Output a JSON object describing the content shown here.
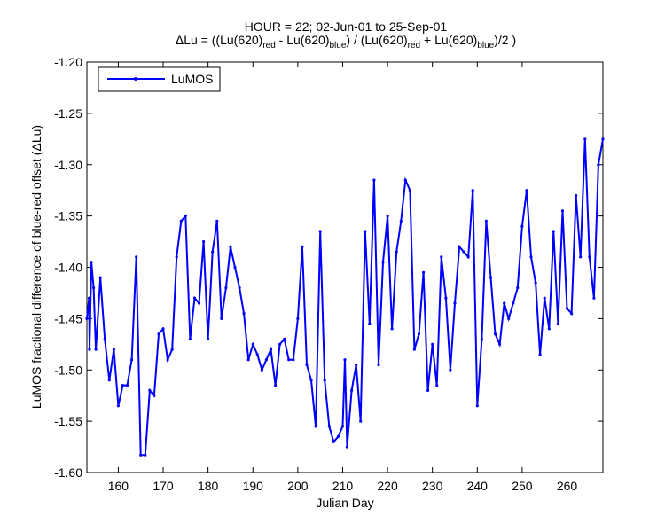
{
  "title": {
    "line1": "HOUR = 22; 02-Jun-01 to 25-Sep-01",
    "formula": {
      "prefix": "ΔLu = ((Lu(620)",
      "red": "red",
      "mid1": " - Lu(620)",
      "blue": "blue",
      "mid2": ") / (Lu(620)",
      "mid3": " + Lu(620)",
      "suffix": ")/2  )"
    }
  },
  "chart_data": {
    "type": "line",
    "xlabel": "Julian Day",
    "ylabel": "LuMOS fractional difference of blue-red offset (ΔLu)",
    "xlim": [
      153,
      268
    ],
    "ylim": [
      -1.6,
      -1.2
    ],
    "xticks": [
      160,
      170,
      180,
      190,
      200,
      210,
      220,
      230,
      240,
      250,
      260
    ],
    "yticks": [
      -1.6,
      -1.55,
      -1.5,
      -1.45,
      -1.4,
      -1.35,
      -1.3,
      -1.25,
      -1.2
    ],
    "ytick_labels": [
      "-1.60",
      "-1.55",
      "-1.50",
      "-1.45",
      "-1.40",
      "-1.35",
      "-1.30",
      "-1.25",
      "-1.20"
    ],
    "legend": {
      "position": "top-left",
      "entries": [
        "LuMOS"
      ]
    },
    "grid": false,
    "series": [
      {
        "name": "LuMOS",
        "color": "#0000ff",
        "marker": "dot",
        "points": [
          [
            153.0,
            -1.45
          ],
          [
            153.5,
            -1.43
          ],
          [
            153.6,
            -1.48
          ],
          [
            154.0,
            -1.395
          ],
          [
            154.5,
            -1.42
          ],
          [
            155.0,
            -1.48
          ],
          [
            156.0,
            -1.41
          ],
          [
            157.0,
            -1.47
          ],
          [
            158.0,
            -1.51
          ],
          [
            159.0,
            -1.48
          ],
          [
            160.0,
            -1.535
          ],
          [
            161.0,
            -1.515
          ],
          [
            162.0,
            -1.515
          ],
          [
            163.0,
            -1.49
          ],
          [
            164.0,
            -1.39
          ],
          [
            165.0,
            -1.583
          ],
          [
            166.0,
            -1.583
          ],
          [
            167.0,
            -1.52
          ],
          [
            168.0,
            -1.525
          ],
          [
            169.0,
            -1.465
          ],
          [
            170.0,
            -1.46
          ],
          [
            171.0,
            -1.49
          ],
          [
            172.0,
            -1.48
          ],
          [
            173.0,
            -1.39
          ],
          [
            174.0,
            -1.355
          ],
          [
            175.0,
            -1.35
          ],
          [
            176.0,
            -1.47
          ],
          [
            177.0,
            -1.43
          ],
          [
            178.0,
            -1.435
          ],
          [
            179.0,
            -1.375
          ],
          [
            180.0,
            -1.47
          ],
          [
            181.0,
            -1.385
          ],
          [
            182.0,
            -1.355
          ],
          [
            183.0,
            -1.45
          ],
          [
            184.0,
            -1.42
          ],
          [
            185.0,
            -1.38
          ],
          [
            186.0,
            -1.4
          ],
          [
            187.0,
            -1.42
          ],
          [
            188.0,
            -1.445
          ],
          [
            189.0,
            -1.49
          ],
          [
            190.0,
            -1.475
          ],
          [
            191.0,
            -1.485
          ],
          [
            192.0,
            -1.5
          ],
          [
            193.0,
            -1.49
          ],
          [
            194.0,
            -1.48
          ],
          [
            195.0,
            -1.515
          ],
          [
            196.0,
            -1.475
          ],
          [
            197.0,
            -1.47
          ],
          [
            198.0,
            -1.49
          ],
          [
            199.0,
            -1.49
          ],
          [
            200.0,
            -1.45
          ],
          [
            201.0,
            -1.38
          ],
          [
            202.0,
            -1.495
          ],
          [
            203.0,
            -1.51
          ],
          [
            204.0,
            -1.555
          ],
          [
            205.0,
            -1.365
          ],
          [
            206.0,
            -1.51
          ],
          [
            207.0,
            -1.555
          ],
          [
            208.0,
            -1.57
          ],
          [
            209.0,
            -1.565
          ],
          [
            210.0,
            -1.555
          ],
          [
            210.5,
            -1.49
          ],
          [
            211.0,
            -1.575
          ],
          [
            212.0,
            -1.52
          ],
          [
            213.0,
            -1.495
          ],
          [
            214.0,
            -1.55
          ],
          [
            215.0,
            -1.365
          ],
          [
            216.0,
            -1.455
          ],
          [
            217.0,
            -1.315
          ],
          [
            218.0,
            -1.495
          ],
          [
            219.0,
            -1.395
          ],
          [
            220.0,
            -1.35
          ],
          [
            221.0,
            -1.46
          ],
          [
            222.0,
            -1.385
          ],
          [
            223.0,
            -1.355
          ],
          [
            224.0,
            -1.315
          ],
          [
            225.0,
            -1.325
          ],
          [
            226.0,
            -1.48
          ],
          [
            227.0,
            -1.465
          ],
          [
            228.0,
            -1.405
          ],
          [
            229.0,
            -1.52
          ],
          [
            230.0,
            -1.475
          ],
          [
            231.0,
            -1.515
          ],
          [
            232.0,
            -1.39
          ],
          [
            233.0,
            -1.43
          ],
          [
            234.0,
            -1.5
          ],
          [
            235.0,
            -1.435
          ],
          [
            236.0,
            -1.38
          ],
          [
            237.0,
            -1.385
          ],
          [
            238.0,
            -1.39
          ],
          [
            239.0,
            -1.325
          ],
          [
            240.0,
            -1.535
          ],
          [
            241.0,
            -1.47
          ],
          [
            242.0,
            -1.355
          ],
          [
            243.0,
            -1.41
          ],
          [
            244.0,
            -1.465
          ],
          [
            245.0,
            -1.475
          ],
          [
            246.0,
            -1.435
          ],
          [
            247.0,
            -1.45
          ],
          [
            248.0,
            -1.435
          ],
          [
            249.0,
            -1.42
          ],
          [
            250.0,
            -1.36
          ],
          [
            251.0,
            -1.325
          ],
          [
            252.0,
            -1.39
          ],
          [
            253.0,
            -1.415
          ],
          [
            254.0,
            -1.485
          ],
          [
            255.0,
            -1.43
          ],
          [
            256.0,
            -1.46
          ],
          [
            257.0,
            -1.365
          ],
          [
            258.0,
            -1.455
          ],
          [
            259.0,
            -1.345
          ],
          [
            260.0,
            -1.44
          ],
          [
            261.0,
            -1.445
          ],
          [
            262.0,
            -1.33
          ],
          [
            263.0,
            -1.39
          ],
          [
            264.0,
            -1.275
          ],
          [
            265.0,
            -1.39
          ],
          [
            266.0,
            -1.43
          ],
          [
            267.0,
            -1.3
          ],
          [
            268.0,
            -1.275
          ]
        ]
      }
    ]
  }
}
